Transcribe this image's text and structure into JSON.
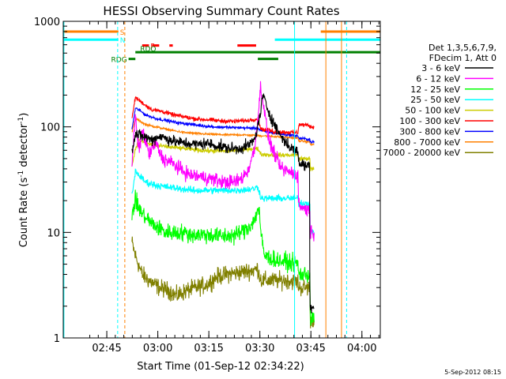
{
  "chart_data": {
    "type": "line",
    "title": "HESSI Observing Summary Count Rates",
    "xlabel": "Start Time (01-Sep-12 02:34:22)",
    "ylabel_main": "Count Rate (s",
    "ylabel_sup": "-1",
    "ylabel_mid": " detector",
    "ylabel_sup2": "-1",
    "ylabel_end": ")",
    "x_start_minutes": 0,
    "x_end_minutes": 90,
    "xlim_minutes": [
      -2.2,
      91
    ],
    "ylim": [
      1,
      1000
    ],
    "yscale": "log",
    "x_ticks": [
      {
        "label": "02:45",
        "minutes": 10.6
      },
      {
        "label": "03:00",
        "minutes": 25.6
      },
      {
        "label": "03:15",
        "minutes": 40.6
      },
      {
        "label": "03:30",
        "minutes": 55.6
      },
      {
        "label": "03:45",
        "minutes": 70.6
      },
      {
        "label": "04:00",
        "minutes": 85.6
      }
    ],
    "y_ticks": [
      {
        "label": "1",
        "value": 1
      },
      {
        "label": "10",
        "value": 10
      },
      {
        "label": "100",
        "value": 100
      },
      {
        "label": "1000",
        "value": 1000
      }
    ],
    "legend": {
      "placement": "right",
      "header1": "Det 1,3,5,6,7,9,",
      "header2": "FDecim 1, Att 0",
      "entries": [
        {
          "label": "3 - 6 keV",
          "color": "#000000"
        },
        {
          "label": "6 - 12 keV",
          "color": "#ff00ff"
        },
        {
          "label": "12 - 25 keV",
          "color": "#00ff00"
        },
        {
          "label": "25 - 50 keV",
          "color": "#00ffff"
        },
        {
          "label": "50 - 100 keV",
          "color": "#cccc00"
        },
        {
          "label": "100 - 300 keV",
          "color": "#ff0000"
        },
        {
          "label": "300 - 800 keV",
          "color": "#0000ff"
        },
        {
          "label": "800 - 7000 keV",
          "color": "#ff8000"
        },
        {
          "label": "7000 - 20000 keV",
          "color": "#808000"
        }
      ]
    },
    "flags": [
      {
        "label": "S",
        "color": "#ff8000",
        "segments": [
          [
            -2,
            14
          ],
          [
            73.5,
            91
          ]
        ],
        "value": 800
      },
      {
        "label": "N",
        "color": "#00ffff",
        "segments": [
          [
            -2,
            14
          ],
          [
            60,
            91
          ]
        ],
        "value": 670
      },
      {
        "label": "F",
        "color": "#ff0000",
        "segments": [
          [
            21,
            23
          ],
          [
            24,
            26
          ],
          [
            29,
            30
          ],
          [
            49,
            54.5
          ]
        ],
        "value": 590
      },
      {
        "label": "RDO",
        "color": "#008000",
        "segments": [
          [
            19,
            91
          ]
        ],
        "value": 510
      },
      {
        "label": "RDG",
        "color": "#008000",
        "segments": [
          [
            17,
            19
          ],
          [
            55,
            61
          ]
        ],
        "value": 440
      }
    ],
    "vertical_lines": [
      {
        "minutes": -2,
        "color": "#00ffff",
        "style": "solid"
      },
      {
        "minutes": 13.8,
        "color": "#00ffff",
        "style": "dashed"
      },
      {
        "minutes": 15.9,
        "color": "#ff8000",
        "style": "dashed"
      },
      {
        "minutes": 65.8,
        "color": "#00ffff",
        "style": "solid"
      },
      {
        "minutes": 75,
        "color": "#ff8000",
        "style": "solid"
      },
      {
        "minutes": 79.6,
        "color": "#ff8000",
        "style": "solid"
      },
      {
        "minutes": 81.1,
        "color": "#00ffff",
        "style": "dashed"
      }
    ],
    "series": [
      {
        "name": "3 - 6 keV",
        "color": "#000000",
        "noise": 0.08,
        "points": [
          [
            18,
            60
          ],
          [
            19,
            85
          ],
          [
            22,
            80
          ],
          [
            24,
            75
          ],
          [
            26,
            82
          ],
          [
            28,
            78
          ],
          [
            31,
            72
          ],
          [
            34,
            70
          ],
          [
            37,
            68
          ],
          [
            40,
            70
          ],
          [
            43,
            66
          ],
          [
            46,
            63
          ],
          [
            49,
            62
          ],
          [
            52,
            66
          ],
          [
            54,
            75
          ],
          [
            55.5,
            120
          ],
          [
            56.5,
            200
          ],
          [
            57.5,
            160
          ],
          [
            59,
            120
          ],
          [
            61,
            90
          ],
          [
            63,
            72
          ],
          [
            65,
            62
          ],
          [
            66.8,
            58
          ],
          [
            67,
            46
          ],
          [
            69,
            43
          ],
          [
            70.2,
            44
          ],
          [
            70.3,
            2
          ],
          [
            71.6,
            2
          ]
        ]
      },
      {
        "name": "6 - 12 keV",
        "color": "#ff00ff",
        "noise": 0.1,
        "points": [
          [
            18,
            45
          ],
          [
            19,
            125
          ],
          [
            20,
            60
          ],
          [
            21,
            90
          ],
          [
            22,
            75
          ],
          [
            23,
            55
          ],
          [
            25,
            70
          ],
          [
            27,
            50
          ],
          [
            30,
            45
          ],
          [
            32,
            40
          ],
          [
            35,
            35
          ],
          [
            40,
            33
          ],
          [
            45,
            30
          ],
          [
            48,
            30
          ],
          [
            50,
            32
          ],
          [
            52,
            38
          ],
          [
            54,
            60
          ],
          [
            55.3,
            150
          ],
          [
            55.8,
            240
          ],
          [
            56.5,
            180
          ],
          [
            58,
            80
          ],
          [
            59,
            65
          ],
          [
            60,
            55
          ],
          [
            61,
            45
          ],
          [
            62,
            40
          ],
          [
            66.8,
            35
          ],
          [
            67,
            18
          ],
          [
            70.3,
            16
          ],
          [
            70.4,
            10
          ],
          [
            71.6,
            10
          ]
        ]
      },
      {
        "name": "12 - 25 keV",
        "color": "#00ff00",
        "noise": 0.12,
        "points": [
          [
            18,
            15
          ],
          [
            19,
            20
          ],
          [
            21,
            15
          ],
          [
            24,
            12
          ],
          [
            28,
            10
          ],
          [
            32,
            10
          ],
          [
            36,
            9.5
          ],
          [
            40,
            9.5
          ],
          [
            44,
            9.2
          ],
          [
            48,
            9.3
          ],
          [
            52,
            11
          ],
          [
            54,
            13
          ],
          [
            55,
            17
          ],
          [
            55.5,
            15
          ],
          [
            56,
            9
          ],
          [
            57,
            6
          ],
          [
            60,
            5.5
          ],
          [
            66.8,
            5
          ],
          [
            67,
            4
          ],
          [
            70.3,
            4
          ],
          [
            70.4,
            1.5
          ],
          [
            71.6,
            1.5
          ]
        ]
      },
      {
        "name": "25 - 50 keV",
        "color": "#00ffff",
        "noise": 0.05,
        "points": [
          [
            18,
            22
          ],
          [
            19,
            38
          ],
          [
            20,
            35
          ],
          [
            22,
            30
          ],
          [
            25,
            28
          ],
          [
            28,
            27
          ],
          [
            32,
            26
          ],
          [
            36,
            25
          ],
          [
            40,
            25
          ],
          [
            44,
            25
          ],
          [
            48,
            25
          ],
          [
            52,
            25.5
          ],
          [
            54,
            26
          ],
          [
            55,
            27
          ],
          [
            55.5,
            24
          ],
          [
            56,
            21
          ],
          [
            60,
            21
          ],
          [
            66.8,
            21
          ],
          [
            67,
            19
          ],
          [
            70.3,
            19
          ],
          [
            70.4,
            10
          ],
          [
            71.6,
            10
          ]
        ]
      },
      {
        "name": "50 - 100 keV",
        "color": "#cccc00",
        "noise": 0.03,
        "points": [
          [
            18,
            42
          ],
          [
            19,
            62
          ],
          [
            20,
            75
          ],
          [
            22,
            70
          ],
          [
            26,
            66
          ],
          [
            30,
            64
          ],
          [
            34,
            62
          ],
          [
            38,
            60
          ],
          [
            42,
            59
          ],
          [
            46,
            59
          ],
          [
            50,
            60
          ],
          [
            52,
            62
          ],
          [
            54,
            62
          ],
          [
            55,
            62
          ],
          [
            56,
            55
          ],
          [
            60,
            54
          ],
          [
            66.8,
            54
          ],
          [
            67,
            50
          ],
          [
            70.3,
            50
          ],
          [
            70.4,
            40
          ],
          [
            71.6,
            40
          ]
        ]
      },
      {
        "name": "100 - 300 keV",
        "color": "#ff0000",
        "noise": 0.03,
        "points": [
          [
            18,
            120
          ],
          [
            19,
            190
          ],
          [
            20,
            180
          ],
          [
            22,
            160
          ],
          [
            24,
            145
          ],
          [
            27,
            140
          ],
          [
            30,
            130
          ],
          [
            33,
            125
          ],
          [
            36,
            120
          ],
          [
            40,
            117
          ],
          [
            44,
            114
          ],
          [
            48,
            113
          ],
          [
            52,
            115
          ],
          [
            54,
            118
          ],
          [
            55,
            118
          ],
          [
            56,
            95
          ],
          [
            60,
            90
          ],
          [
            66.8,
            88
          ],
          [
            67,
            105
          ],
          [
            70.3,
            103
          ],
          [
            70.4,
            100
          ],
          [
            71.6,
            100
          ]
        ]
      },
      {
        "name": "300 - 800 keV",
        "color": "#0000ff",
        "noise": 0.02,
        "points": [
          [
            18,
            95
          ],
          [
            19,
            150
          ],
          [
            20,
            145
          ],
          [
            22,
            130
          ],
          [
            25,
            120
          ],
          [
            28,
            115
          ],
          [
            31,
            110
          ],
          [
            34,
            107
          ],
          [
            38,
            103
          ],
          [
            42,
            100
          ],
          [
            46,
            99
          ],
          [
            50,
            98
          ],
          [
            54,
            97
          ],
          [
            55,
            97
          ],
          [
            56,
            92
          ],
          [
            60,
            87
          ],
          [
            64,
            84
          ],
          [
            66.8,
            82
          ],
          [
            67,
            78
          ],
          [
            70.3,
            76
          ],
          [
            70.4,
            72
          ],
          [
            71.6,
            72
          ]
        ]
      },
      {
        "name": "800 - 7000 keV",
        "color": "#ff8000",
        "noise": 0.015,
        "points": [
          [
            18,
            88
          ],
          [
            19,
            120
          ],
          [
            20,
            115
          ],
          [
            22,
            105
          ],
          [
            25,
            100
          ],
          [
            28,
            95
          ],
          [
            31,
            91
          ],
          [
            34,
            88
          ],
          [
            38,
            86
          ],
          [
            42,
            85
          ],
          [
            46,
            84
          ],
          [
            50,
            84
          ],
          [
            54,
            83
          ],
          [
            58,
            82
          ],
          [
            62,
            80
          ],
          [
            66.8,
            78
          ],
          [
            67,
            74
          ],
          [
            70.3,
            72
          ],
          [
            70.4,
            68
          ],
          [
            71.6,
            68
          ]
        ]
      },
      {
        "name": "7000 - 20000 keV",
        "color": "#808000",
        "noise": 0.12,
        "points": [
          [
            18,
            8
          ],
          [
            19,
            6
          ],
          [
            21,
            4
          ],
          [
            23,
            3.5
          ],
          [
            26,
            3
          ],
          [
            29,
            2.8
          ],
          [
            31,
            2.5
          ],
          [
            34,
            2.8
          ],
          [
            37,
            3
          ],
          [
            40,
            3.2
          ],
          [
            43,
            3.8
          ],
          [
            46,
            4
          ],
          [
            50,
            4.2
          ],
          [
            54,
            4.4
          ],
          [
            55,
            4.5
          ],
          [
            56,
            3.5
          ],
          [
            60,
            3.5
          ],
          [
            64,
            3.5
          ],
          [
            66.8,
            3.4
          ],
          [
            67,
            3
          ],
          [
            70.3,
            3
          ],
          [
            70.4,
            1.5
          ],
          [
            71.6,
            1.5
          ]
        ]
      }
    ]
  },
  "footer_date": "5-Sep-2012 08:15"
}
